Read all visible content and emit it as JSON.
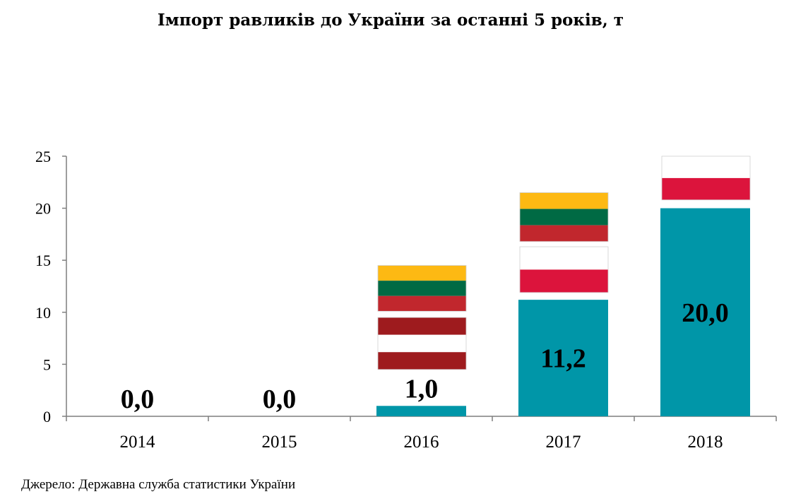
{
  "chart_data": {
    "type": "bar",
    "title": "Імпорт равликів до України за останні 5 років, т",
    "categories": [
      "2014",
      "2015",
      "2016",
      "2017",
      "2018"
    ],
    "values": [
      0.0,
      0.0,
      1.0,
      11.2,
      20.0
    ],
    "value_labels": [
      "0,0",
      "0,0",
      "1,0",
      "11,2",
      "20,0"
    ],
    "bar_color": "#0096a8",
    "ylim": [
      0,
      25
    ],
    "yticks": [
      0,
      5,
      10,
      15,
      20,
      25
    ],
    "grid": false,
    "xlabel": "",
    "ylabel": "",
    "flag_decorations": [
      {
        "category": "2016",
        "flag": "lithuania",
        "colors": [
          "#fdb913",
          "#006a44",
          "#c1272d"
        ],
        "range": [
          10.1,
          14.5
        ]
      },
      {
        "category": "2016",
        "flag": "latvia",
        "colors": [
          "#9e1b1e",
          "#ffffff",
          "#9e1b1e"
        ],
        "range": [
          4.5,
          9.5
        ]
      },
      {
        "category": "2017",
        "flag": "lithuania",
        "colors": [
          "#fdb913",
          "#006a44",
          "#c1272d"
        ],
        "range": [
          16.8,
          21.5
        ]
      },
      {
        "category": "2017",
        "flag": "poland",
        "colors": [
          "#ffffff",
          "#dc143c"
        ],
        "range": [
          11.9,
          16.3
        ]
      },
      {
        "category": "2018",
        "flag": "poland",
        "colors": [
          "#ffffff",
          "#dc143c"
        ],
        "range": [
          20.8,
          25.0
        ]
      }
    ]
  },
  "source": "Джерело: Державна служба статистики України"
}
